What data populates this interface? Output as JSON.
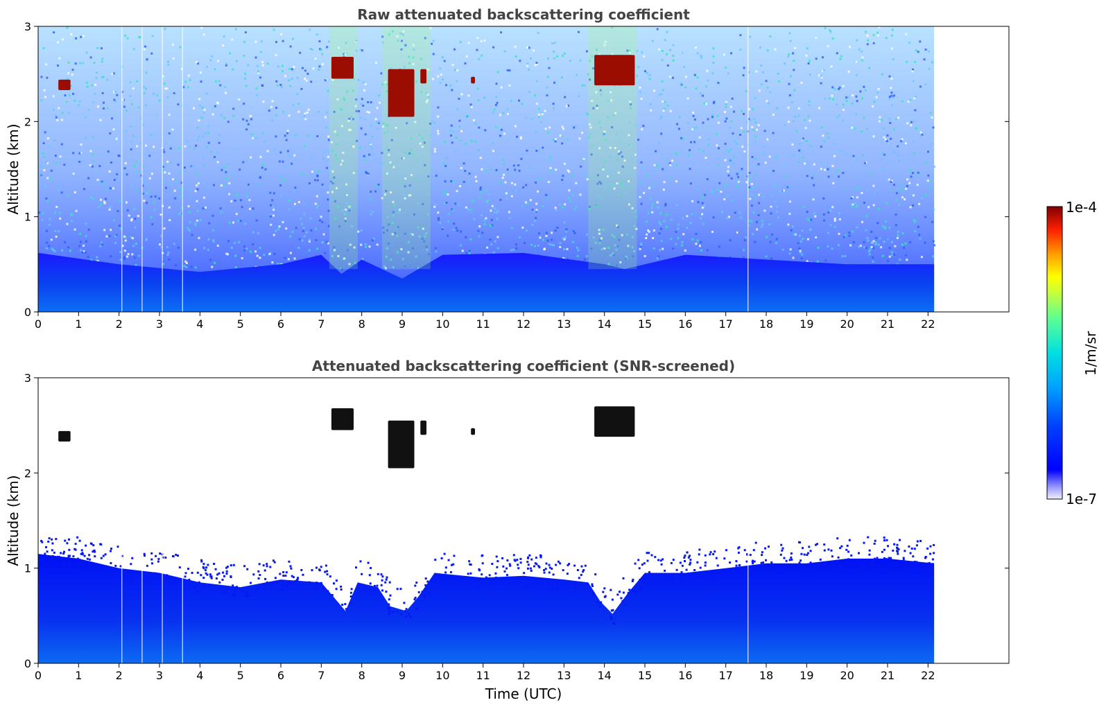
{
  "chart_data": [
    {
      "type": "heatmap",
      "title": "Raw attenuated backscattering coefficient",
      "xlabel": "",
      "ylabel": "Altitude (km)",
      "xlim": [
        0,
        24
      ],
      "ylim": [
        0,
        3
      ],
      "x_ticks": [
        0,
        1,
        2,
        3,
        4,
        5,
        6,
        7,
        8,
        9,
        10,
        11,
        12,
        13,
        14,
        15,
        16,
        17,
        18,
        19,
        20,
        21,
        22
      ],
      "y_ticks": [
        0,
        1,
        2,
        3
      ],
      "data_end_time": 22.15,
      "screened": false,
      "cloud_patches": [
        {
          "t_start": 0.5,
          "t_end": 0.8,
          "alt_low": 2.33,
          "alt_high": 2.44
        },
        {
          "t_start": 7.25,
          "t_end": 7.8,
          "alt_low": 2.45,
          "alt_high": 2.68
        },
        {
          "t_start": 8.65,
          "t_end": 9.3,
          "alt_low": 2.05,
          "alt_high": 2.55
        },
        {
          "t_start": 9.45,
          "t_end": 9.6,
          "alt_low": 2.4,
          "alt_high": 2.55
        },
        {
          "t_start": 10.7,
          "t_end": 10.8,
          "alt_low": 2.4,
          "alt_high": 2.47
        },
        {
          "t_start": 13.75,
          "t_end": 14.75,
          "alt_low": 2.38,
          "alt_high": 2.7
        }
      ],
      "boundary_layer": [
        {
          "t": 0,
          "alt": 0.62
        },
        {
          "t": 2,
          "alt": 0.5
        },
        {
          "t": 4,
          "alt": 0.42
        },
        {
          "t": 6,
          "alt": 0.5
        },
        {
          "t": 7,
          "alt": 0.6
        },
        {
          "t": 7.5,
          "alt": 0.4
        },
        {
          "t": 8,
          "alt": 0.55
        },
        {
          "t": 9,
          "alt": 0.35
        },
        {
          "t": 10,
          "alt": 0.6
        },
        {
          "t": 12,
          "alt": 0.62
        },
        {
          "t": 14,
          "alt": 0.5
        },
        {
          "t": 14.5,
          "alt": 0.45
        },
        {
          "t": 16,
          "alt": 0.6
        },
        {
          "t": 18,
          "alt": 0.55
        },
        {
          "t": 20,
          "alt": 0.5
        },
        {
          "t": 22.15,
          "alt": 0.5
        }
      ],
      "gap_lines": [
        2.07,
        2.57,
        3.07,
        3.57,
        17.55
      ]
    },
    {
      "type": "heatmap",
      "title": "Attenuated backscattering coefficient (SNR-screened)",
      "xlabel": "Time (UTC)",
      "ylabel": "Altitude (km)",
      "xlim": [
        0,
        24
      ],
      "ylim": [
        0,
        3
      ],
      "x_ticks": [
        0,
        1,
        2,
        3,
        4,
        5,
        6,
        7,
        8,
        9,
        10,
        11,
        12,
        13,
        14,
        15,
        16,
        17,
        18,
        19,
        20,
        21,
        22
      ],
      "y_ticks": [
        0,
        1,
        2,
        3
      ],
      "data_end_time": 22.15,
      "screened": true,
      "cloud_patches": [
        {
          "t_start": 0.5,
          "t_end": 0.8,
          "alt_low": 2.33,
          "alt_high": 2.44
        },
        {
          "t_start": 7.25,
          "t_end": 7.8,
          "alt_low": 2.45,
          "alt_high": 2.68
        },
        {
          "t_start": 8.65,
          "t_end": 9.3,
          "alt_low": 2.05,
          "alt_high": 2.55
        },
        {
          "t_start": 9.45,
          "t_end": 9.6,
          "alt_low": 2.4,
          "alt_high": 2.55
        },
        {
          "t_start": 10.7,
          "t_end": 10.8,
          "alt_low": 2.4,
          "alt_high": 2.47
        },
        {
          "t_start": 13.75,
          "t_end": 14.75,
          "alt_low": 2.38,
          "alt_high": 2.7
        }
      ],
      "signal_top": [
        {
          "t": 0,
          "alt": 1.15
        },
        {
          "t": 1,
          "alt": 1.1
        },
        {
          "t": 2,
          "alt": 1.0
        },
        {
          "t": 3,
          "alt": 0.95
        },
        {
          "t": 4,
          "alt": 0.85
        },
        {
          "t": 5,
          "alt": 0.8
        },
        {
          "t": 6,
          "alt": 0.88
        },
        {
          "t": 7,
          "alt": 0.85
        },
        {
          "t": 7.3,
          "alt": 0.7
        },
        {
          "t": 7.6,
          "alt": 0.55
        },
        {
          "t": 7.9,
          "alt": 0.85
        },
        {
          "t": 8.4,
          "alt": 0.8
        },
        {
          "t": 8.7,
          "alt": 0.6
        },
        {
          "t": 9.1,
          "alt": 0.55
        },
        {
          "t": 9.4,
          "alt": 0.7
        },
        {
          "t": 9.8,
          "alt": 0.95
        },
        {
          "t": 11,
          "alt": 0.9
        },
        {
          "t": 12,
          "alt": 0.92
        },
        {
          "t": 13,
          "alt": 0.88
        },
        {
          "t": 13.6,
          "alt": 0.85
        },
        {
          "t": 13.9,
          "alt": 0.65
        },
        {
          "t": 14.2,
          "alt": 0.52
        },
        {
          "t": 14.6,
          "alt": 0.75
        },
        {
          "t": 15,
          "alt": 0.95
        },
        {
          "t": 16,
          "alt": 0.95
        },
        {
          "t": 17,
          "alt": 1.0
        },
        {
          "t": 18,
          "alt": 1.05
        },
        {
          "t": 19,
          "alt": 1.05
        },
        {
          "t": 20,
          "alt": 1.1
        },
        {
          "t": 21,
          "alt": 1.1
        },
        {
          "t": 22.15,
          "alt": 1.05
        }
      ],
      "gap_lines": [
        2.07,
        2.57,
        3.07,
        3.57,
        17.55
      ]
    }
  ],
  "colorbar": {
    "label": "1/m/sr",
    "max_label": "1e-4",
    "min_label": "1e-7",
    "scale": "log",
    "range": [
      1e-07,
      0.0001
    ],
    "colormap": "jet"
  }
}
